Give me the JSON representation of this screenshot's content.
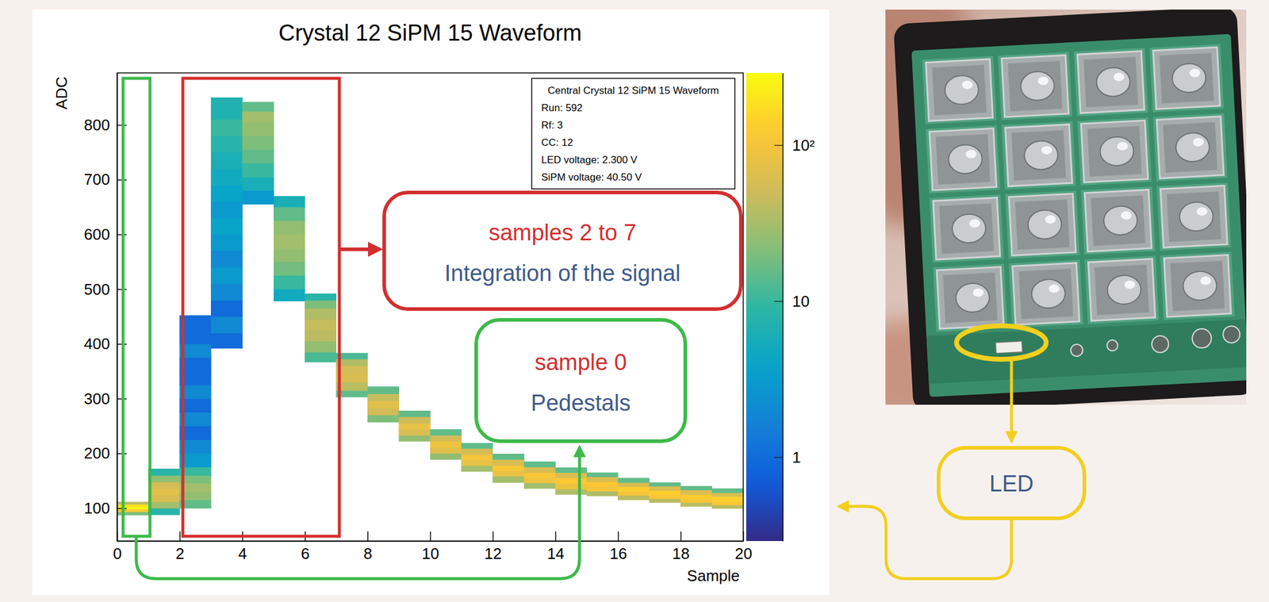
{
  "chart_data": {
    "type": "heatmap",
    "title": "Crystal 12 SiPM 15 Waveform",
    "x_label": "Sample",
    "y_label": "ADC",
    "xlim": [
      0,
      20
    ],
    "xticks": [
      0,
      2,
      4,
      6,
      8,
      10,
      12,
      14,
      16,
      18,
      20
    ],
    "ylim": [
      40,
      895
    ],
    "yticks": [
      100,
      200,
      300,
      400,
      500,
      600,
      700,
      800
    ],
    "x_bins": [
      0,
      1,
      2,
      3,
      4,
      5,
      6,
      7,
      8,
      9,
      10,
      11,
      12,
      13,
      14,
      15,
      16,
      17,
      18,
      19,
      20
    ],
    "columns": [
      {
        "adc_edges": [
          87,
          93,
          98,
          103,
          107,
          111
        ],
        "counts": [
          20,
          120,
          250,
          180,
          40
        ]
      },
      {
        "adc_edges": [
          88,
          100,
          112,
          124,
          136,
          148,
          160,
          172
        ],
        "counts": [
          8,
          30,
          60,
          70,
          55,
          25,
          8
        ]
      },
      {
        "adc_edges": [
          100,
          115,
          130,
          145,
          160,
          175,
          200,
          225,
          250,
          275,
          300,
          325,
          350,
          375,
          400,
          425,
          452
        ],
        "counts": [
          15,
          25,
          30,
          20,
          10,
          3,
          2,
          1,
          2,
          1,
          2,
          1,
          1,
          2,
          1,
          1
        ]
      },
      {
        "adc_edges": [
          392,
          420,
          450,
          480,
          510,
          540,
          570,
          600,
          630,
          660,
          690,
          720,
          750,
          780,
          810,
          850
        ],
        "counts": [
          1,
          2,
          1,
          2,
          3,
          2,
          3,
          4,
          3,
          4,
          5,
          6,
          8,
          10,
          7
        ]
      },
      {
        "adc_edges": [
          655,
          680,
          705,
          730,
          755,
          780,
          805,
          825,
          842
        ],
        "counts": [
          3,
          6,
          10,
          15,
          20,
          25,
          30,
          15
        ]
      },
      {
        "adc_edges": [
          478,
          500,
          525,
          550,
          575,
          600,
          625,
          650,
          670
        ],
        "counts": [
          5,
          10,
          18,
          25,
          30,
          25,
          15,
          6
        ]
      },
      {
        "adc_edges": [
          367,
          385,
          405,
          425,
          445,
          465,
          480,
          492
        ],
        "counts": [
          12,
          25,
          40,
          45,
          35,
          20,
          8
        ]
      },
      {
        "adc_edges": [
          303,
          315,
          330,
          345,
          360,
          372,
          383
        ],
        "counts": [
          15,
          40,
          60,
          55,
          35,
          12
        ]
      },
      {
        "adc_edges": [
          257,
          270,
          283,
          296,
          309,
          322
        ],
        "counts": [
          20,
          55,
          70,
          45,
          15
        ]
      },
      {
        "adc_edges": [
          222,
          233,
          244,
          255,
          267,
          278
        ],
        "counts": [
          25,
          60,
          80,
          50,
          15
        ]
      },
      {
        "adc_edges": [
          189,
          200,
          211,
          222,
          233,
          244
        ],
        "counts": [
          25,
          70,
          90,
          55,
          15
        ]
      },
      {
        "adc_edges": [
          167,
          178,
          188,
          198,
          209,
          219
        ],
        "counts": [
          30,
          80,
          100,
          55,
          15
        ]
      },
      {
        "adc_edges": [
          147,
          158,
          168,
          178,
          189,
          199
        ],
        "counts": [
          30,
          80,
          110,
          60,
          15
        ]
      },
      {
        "adc_edges": [
          136,
          146,
          156,
          165,
          175,
          185
        ],
        "counts": [
          30,
          90,
          110,
          60,
          15
        ]
      },
      {
        "adc_edges": [
          125,
          135,
          145,
          155,
          165,
          174
        ],
        "counts": [
          35,
          90,
          120,
          60,
          15
        ]
      },
      {
        "adc_edges": [
          122,
          131,
          140,
          148,
          157,
          165
        ],
        "counts": [
          35,
          100,
          120,
          60,
          15
        ]
      },
      {
        "adc_edges": [
          115,
          123,
          131,
          139,
          147,
          155
        ],
        "counts": [
          40,
          100,
          130,
          60,
          15
        ]
      },
      {
        "adc_edges": [
          110,
          117,
          124,
          132,
          140,
          147
        ],
        "counts": [
          40,
          110,
          130,
          60,
          15
        ]
      },
      {
        "adc_edges": [
          103,
          110,
          118,
          125,
          133,
          140
        ],
        "counts": [
          40,
          110,
          130,
          60,
          15
        ]
      },
      {
        "adc_edges": [
          99,
          106,
          113,
          121,
          128,
          136
        ],
        "counts": [
          40,
          110,
          140,
          60,
          15
        ]
      }
    ],
    "zlim": [
      0.29,
      290
    ],
    "zticks": [
      1,
      10,
      {
        "value": 100,
        "label": "10²"
      }
    ],
    "stats_box": [
      "Central Crystal 12 SiPM 15 Waveform",
      "Run: 592",
      "Rf: 3",
      "CC: 12",
      "LED voltage: 2.300 V",
      "SiPM voltage: 40.50 V"
    ],
    "annotations": [
      {
        "lines": [
          "samples 2 to 7",
          "Integration of the signal"
        ]
      },
      {
        "lines": [
          "sample 0",
          "Pedestals"
        ]
      }
    ],
    "photo_label": "LED"
  }
}
